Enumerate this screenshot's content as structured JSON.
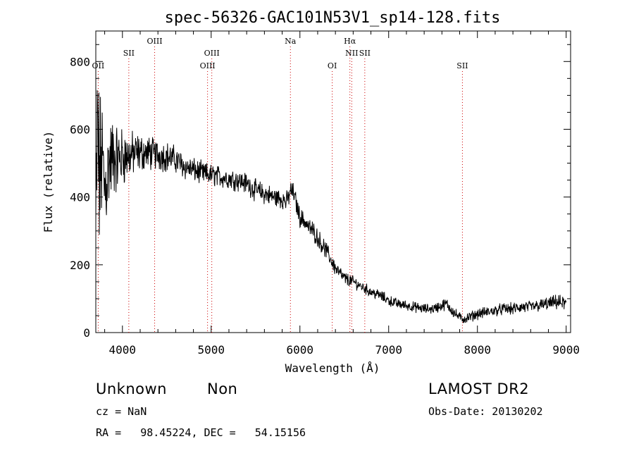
{
  "chart_data": {
    "type": "line",
    "title": "spec-56326-GAC101N53V1_sp14-128.fits",
    "xlabel": "Wavelength (Å)",
    "ylabel": "Flux (relative)",
    "xlim": [
      3700,
      9050
    ],
    "ylim": [
      0,
      890
    ],
    "x_ticks": [
      4000,
      5000,
      6000,
      7000,
      8000,
      9000
    ],
    "y_ticks": [
      0,
      200,
      400,
      600,
      800
    ],
    "line_color": "#000000",
    "marker_color": "#cc0000",
    "spectrum_anchors": {
      "x": [
        3700,
        3720,
        3740,
        3770,
        3800,
        3850,
        3900,
        3950,
        4000,
        4050,
        4100,
        4200,
        4300,
        4400,
        4500,
        4600,
        4700,
        4800,
        4900,
        5000,
        5100,
        5200,
        5300,
        5400,
        5500,
        5600,
        5700,
        5800,
        5850,
        5900,
        5930,
        5960,
        6000,
        6050,
        6100,
        6150,
        6200,
        6300,
        6400,
        6500,
        6600,
        6700,
        6800,
        6900,
        7000,
        7100,
        7200,
        7300,
        7400,
        7500,
        7600,
        7650,
        7700,
        7750,
        7800,
        7850,
        7900,
        8000,
        8100,
        8200,
        8300,
        8400,
        8500,
        8600,
        8700,
        8800,
        8900,
        9000
      ],
      "y": [
        300,
        600,
        450,
        520,
        420,
        500,
        520,
        510,
        520,
        520,
        525,
        530,
        530,
        525,
        520,
        510,
        490,
        480,
        470,
        465,
        460,
        455,
        450,
        440,
        420,
        410,
        400,
        395,
        385,
        420,
        410,
        380,
        340,
        330,
        310,
        300,
        280,
        240,
        190,
        160,
        150,
        135,
        120,
        110,
        95,
        85,
        80,
        75,
        70,
        70,
        80,
        85,
        70,
        55,
        45,
        40,
        45,
        55,
        60,
        65,
        70,
        70,
        75,
        75,
        80,
        85,
        90,
        85
      ],
      "noise_amplitude": [
        180,
        250,
        200,
        150,
        130,
        110,
        95,
        80,
        70,
        60,
        55,
        45,
        40,
        38,
        35,
        32,
        30,
        28,
        27,
        26,
        25,
        25,
        25,
        25,
        25,
        25,
        24,
        24,
        24,
        24,
        24,
        24,
        22,
        22,
        22,
        22,
        22,
        20,
        18,
        16,
        14,
        13,
        13,
        13,
        13,
        12,
        12,
        12,
        12,
        12,
        14,
        14,
        14,
        13,
        12,
        12,
        12,
        13,
        13,
        13,
        14,
        14,
        15,
        15,
        15,
        16,
        17,
        18
      ]
    },
    "line_markers": [
      {
        "label": "OII",
        "x": 3727,
        "row": 3
      },
      {
        "label": "SII",
        "x": 4072,
        "row": 2
      },
      {
        "label": "OIII",
        "x": 4363,
        "row": 1
      },
      {
        "label": "OIII",
        "x": 4959,
        "row": 3
      },
      {
        "label": "OIII",
        "x": 5007,
        "row": 2
      },
      {
        "label": "Na",
        "x": 5893,
        "row": 1
      },
      {
        "label": "OI",
        "x": 6364,
        "row": 3
      },
      {
        "label": "Hα",
        "x": 6563,
        "row": 1
      },
      {
        "label": "NII",
        "x": 6584,
        "row": 2
      },
      {
        "label": "SII",
        "x": 6731,
        "row": 2
      },
      {
        "label": "SII",
        "x": 7831,
        "row": 3
      }
    ]
  },
  "info": {
    "classification": "Unknown",
    "subclass": "Non",
    "survey": "LAMOST DR2",
    "cz": "cz = NaN",
    "obs_date": "Obs-Date: 20130202",
    "coords": "RA =   98.45224, DEC =   54.15156"
  }
}
